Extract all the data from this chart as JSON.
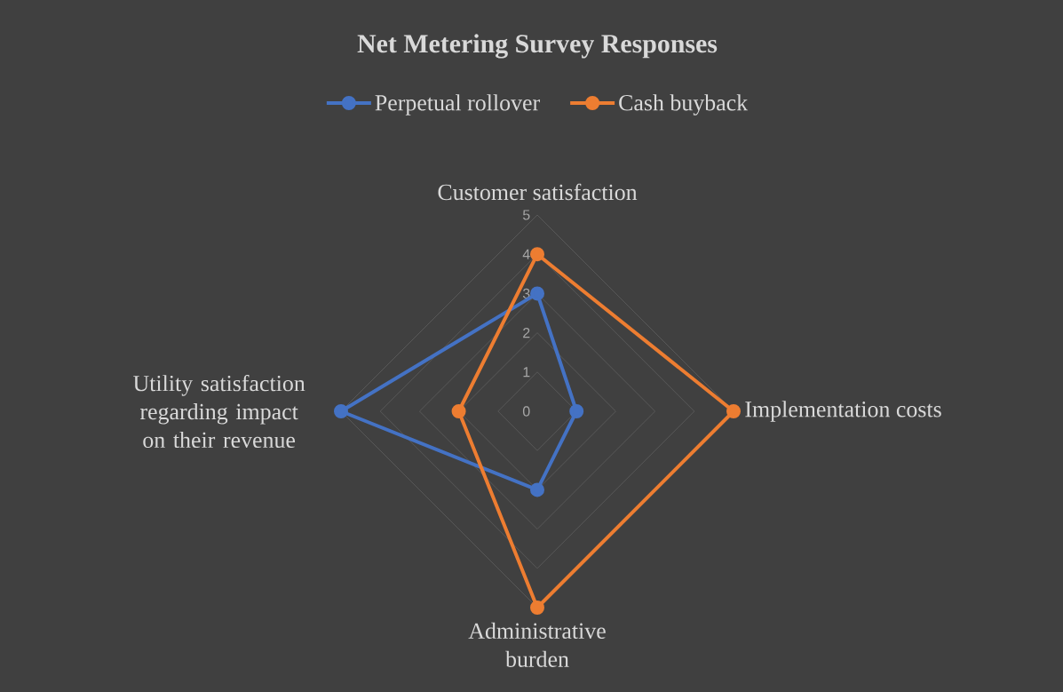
{
  "chart_data": {
    "type": "radar",
    "title": "Net Metering Survey Responses",
    "categories": [
      "Customer satisfaction",
      "Implementation costs",
      "Administrative burden",
      "Utility satisfaction regarding impact on their revenue"
    ],
    "series": [
      {
        "name": "Perpetual rollover",
        "color": "#4472c4",
        "values": [
          3,
          1,
          2,
          5
        ]
      },
      {
        "name": "Cash buyback",
        "color": "#ed7d31",
        "values": [
          4,
          5,
          5,
          2
        ]
      }
    ],
    "ylim": [
      0,
      5
    ],
    "yticks": [
      0,
      1,
      2,
      3,
      4,
      5
    ],
    "grid": true,
    "legend": "top",
    "marker": "circle"
  }
}
